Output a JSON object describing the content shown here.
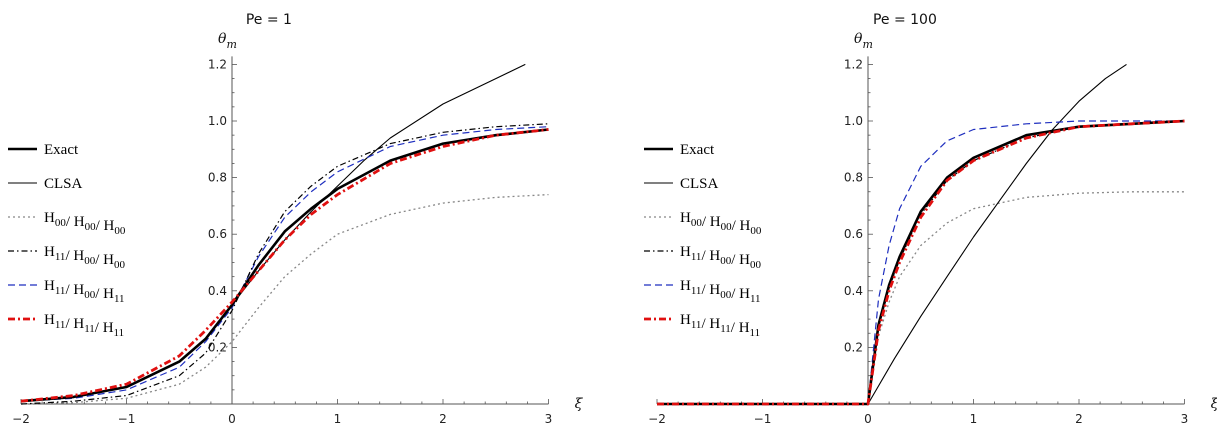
{
  "chart_data": [
    {
      "type": "line",
      "title": "Pe = 1",
      "xlabel": "ξ",
      "ylabel": "θ",
      "ylabel_sub": "m",
      "xlim": [
        -2,
        3
      ],
      "ylim": [
        0,
        1.2
      ],
      "x_ticks": [
        -2,
        -1,
        0,
        1,
        2,
        3
      ],
      "x_tick_labels": [
        "−2",
        "−1",
        "0",
        "1",
        "2",
        "3"
      ],
      "y_ticks": [
        0.2,
        0.4,
        0.6,
        0.8,
        1.0,
        1.2
      ],
      "y_tick_labels": [
        "0.2",
        "0.4",
        "0.6",
        "0.8",
        "1.0",
        "1.2"
      ],
      "legend_position": "left",
      "series": [
        {
          "name": "Exact",
          "color": "#000000",
          "style": "solid-thick",
          "x": [
            -2,
            -1.5,
            -1,
            -0.5,
            -0.25,
            0,
            0.25,
            0.5,
            0.75,
            1,
            1.5,
            2,
            2.5,
            3
          ],
          "y": [
            0.01,
            0.025,
            0.06,
            0.15,
            0.23,
            0.35,
            0.49,
            0.61,
            0.69,
            0.76,
            0.86,
            0.92,
            0.95,
            0.97
          ]
        },
        {
          "name": "CLSA",
          "color": "#000000",
          "style": "solid-thin",
          "x": [
            0,
            0.25,
            0.5,
            0.75,
            1,
            1.25,
            1.5,
            2,
            2.5,
            2.78
          ],
          "y": [
            0.35,
            0.47,
            0.58,
            0.68,
            0.77,
            0.86,
            0.94,
            1.06,
            1.15,
            1.2
          ]
        },
        {
          "name": "H00/H00/H00",
          "color": "#888888",
          "style": "dotted",
          "x": [
            -2,
            -1.5,
            -1,
            -0.5,
            -0.25,
            0,
            0.25,
            0.5,
            0.75,
            1,
            1.5,
            2,
            2.5,
            3
          ],
          "y": [
            0.0,
            0.005,
            0.02,
            0.07,
            0.13,
            0.22,
            0.34,
            0.45,
            0.53,
            0.6,
            0.67,
            0.71,
            0.73,
            0.74
          ]
        },
        {
          "name": "H11/H00/H00",
          "color": "#000000",
          "style": "dashdot",
          "x": [
            -2,
            -1.5,
            -1,
            -0.5,
            -0.25,
            0,
            0.25,
            0.5,
            0.75,
            1,
            1.5,
            2,
            2.5,
            3
          ],
          "y": [
            0.0,
            0.01,
            0.03,
            0.1,
            0.18,
            0.33,
            0.53,
            0.68,
            0.77,
            0.84,
            0.92,
            0.96,
            0.98,
            0.99
          ]
        },
        {
          "name": "H11/H00/H11",
          "color": "#1f2fbf",
          "style": "dashed",
          "x": [
            -2,
            -1.5,
            -1,
            -0.5,
            -0.25,
            0,
            0.25,
            0.5,
            0.75,
            1,
            1.5,
            2,
            2.5,
            3
          ],
          "y": [
            0.01,
            0.02,
            0.05,
            0.13,
            0.22,
            0.34,
            0.52,
            0.66,
            0.75,
            0.82,
            0.91,
            0.95,
            0.97,
            0.98
          ]
        },
        {
          "name": "H11/H11/H11",
          "color": "#e01010",
          "style": "dashdot-thick",
          "x": [
            -2,
            -1.5,
            -1,
            -0.5,
            -0.25,
            0,
            0.25,
            0.5,
            0.75,
            1,
            1.5,
            2,
            2.5,
            3
          ],
          "y": [
            0.01,
            0.03,
            0.07,
            0.17,
            0.26,
            0.36,
            0.47,
            0.58,
            0.67,
            0.74,
            0.85,
            0.91,
            0.95,
            0.97
          ]
        }
      ]
    },
    {
      "type": "line",
      "title": "Pe = 100",
      "xlabel": "ξ",
      "ylabel": "θ",
      "ylabel_sub": "m",
      "xlim": [
        -2,
        3
      ],
      "ylim": [
        0,
        1.2
      ],
      "x_ticks": [
        -2,
        -1,
        0,
        1,
        2,
        3
      ],
      "x_tick_labels": [
        "−2",
        "−1",
        "0",
        "1",
        "2",
        "3"
      ],
      "y_ticks": [
        0.2,
        0.4,
        0.6,
        0.8,
        1.0,
        1.2
      ],
      "y_tick_labels": [
        "0.2",
        "0.4",
        "0.6",
        "0.8",
        "1.0",
        "1.2"
      ],
      "legend_position": "left",
      "series": [
        {
          "name": "Exact",
          "color": "#000000",
          "style": "solid-thick",
          "x": [
            -2,
            -1,
            0,
            0.1,
            0.2,
            0.3,
            0.5,
            0.75,
            1,
            1.5,
            2,
            2.5,
            3
          ],
          "y": [
            0,
            0,
            0,
            0.28,
            0.42,
            0.52,
            0.68,
            0.8,
            0.87,
            0.95,
            0.98,
            0.99,
            1.0
          ]
        },
        {
          "name": "CLSA",
          "color": "#000000",
          "style": "solid-thin",
          "x": [
            0,
            0.25,
            0.5,
            0.75,
            1,
            1.25,
            1.5,
            1.75,
            2,
            2.25,
            2.45
          ],
          "y": [
            0,
            0.16,
            0.31,
            0.45,
            0.59,
            0.72,
            0.85,
            0.97,
            1.07,
            1.15,
            1.2
          ]
        },
        {
          "name": "H00/H00/H00",
          "color": "#888888",
          "style": "dotted",
          "x": [
            -2,
            -1,
            0,
            0.1,
            0.2,
            0.3,
            0.5,
            0.75,
            1,
            1.5,
            2,
            2.5,
            3
          ],
          "y": [
            0,
            0,
            0,
            0.24,
            0.36,
            0.45,
            0.56,
            0.64,
            0.69,
            0.73,
            0.745,
            0.75,
            0.75
          ]
        },
        {
          "name": "H11/H00/H00",
          "color": "#000000",
          "style": "dashdot",
          "x": [
            -2,
            -1,
            0,
            0.1,
            0.2,
            0.3,
            0.5,
            0.75,
            1,
            1.5,
            2,
            2.5,
            3
          ],
          "y": [
            0,
            0,
            0,
            0.27,
            0.41,
            0.51,
            0.67,
            0.79,
            0.86,
            0.94,
            0.98,
            0.99,
            1.0
          ]
        },
        {
          "name": "H11/H00/H11",
          "color": "#1f2fbf",
          "style": "dashed",
          "x": [
            -2,
            -1,
            0,
            0.1,
            0.2,
            0.3,
            0.5,
            0.75,
            1,
            1.5,
            2,
            2.5,
            3
          ],
          "y": [
            0,
            0,
            0,
            0.37,
            0.56,
            0.69,
            0.84,
            0.93,
            0.97,
            0.99,
            1.0,
            1.0,
            1.0
          ]
        },
        {
          "name": "H11/H11/H11",
          "color": "#e01010",
          "style": "dashdot-thick",
          "x": [
            -2,
            -1,
            0,
            0.1,
            0.2,
            0.3,
            0.5,
            0.75,
            1,
            1.5,
            2,
            2.5,
            3
          ],
          "y": [
            0,
            0,
            0,
            0.26,
            0.4,
            0.5,
            0.66,
            0.79,
            0.86,
            0.94,
            0.98,
            0.99,
            1.0
          ]
        }
      ]
    }
  ]
}
